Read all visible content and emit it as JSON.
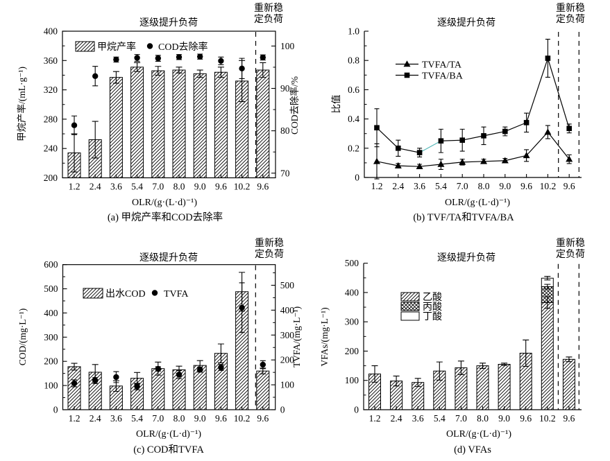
{
  "figure": {
    "background": "#ffffff",
    "ink": "#000000",
    "shared": {
      "stage_label": "逐级提升负荷",
      "restab_lines": [
        "重新稳",
        "定负荷"
      ],
      "xlabel": "OLR/(g·(L·d)⁻¹)",
      "categories": [
        "1.2",
        "2.4",
        "3.6",
        "5.4",
        "7.0",
        "8.0",
        "9.0",
        "9.6",
        "10.2",
        "9.6"
      ]
    }
  },
  "chart_data": [
    {
      "id": "a",
      "type": "bar",
      "caption": "(a) 甲烷产率和COD去除率",
      "stage_label": "逐级提升负荷",
      "restab_label": "重新稳定负荷",
      "xlabel": "OLR/(g·(L·d)⁻¹)",
      "categories": [
        "1.2",
        "2.4",
        "3.6",
        "5.4",
        "7.0",
        "8.0",
        "9.0",
        "9.6",
        "10.2",
        "9.6"
      ],
      "left_axis": {
        "label": "甲烷产率/(mL·g⁻¹)",
        "min": 200,
        "max": 400,
        "ticks": [
          200,
          240,
          280,
          320,
          360,
          400
        ],
        "tick_labels": [
          "200",
          "240",
          "280",
          "320",
          "360",
          "400"
        ],
        "minor_step": 20
      },
      "right_axis": {
        "label": "COD去除率/%",
        "min": 68.9,
        "max": 103.5,
        "ticks": [
          70,
          80,
          90,
          100
        ],
        "tick_labels": [
          "70",
          "80",
          "90",
          "100"
        ],
        "minor_step": 5
      },
      "series": [
        {
          "name": "甲烷产率",
          "kind": "bar",
          "axis": "left",
          "values": [
            234,
            252,
            337,
            351,
            346,
            347,
            342,
            344,
            332,
            347
          ],
          "errors": [
            26,
            25,
            8,
            6,
            6,
            4,
            5,
            7,
            28,
            10
          ]
        },
        {
          "name": "COD去除率",
          "kind": "scatter",
          "axis": "right",
          "values": [
            81.3,
            92.9,
            96.8,
            97.2,
            97.1,
            97.4,
            97.5,
            96.5,
            94.7,
            97.3
          ],
          "errors": [
            2.2,
            2.3,
            0.6,
            0.8,
            0.7,
            0.6,
            0.6,
            0.9,
            2.4,
            0.6
          ]
        }
      ],
      "legend": [
        {
          "label": "甲烷产率",
          "swatch": "hatch-box"
        },
        {
          "label": "COD去除率",
          "swatch": "dot"
        }
      ]
    },
    {
      "id": "b",
      "type": "line",
      "caption": "(b) TVF/TA和TVFA/BA",
      "stage_label": "逐级提升负荷",
      "restab_label": "重新稳定负荷",
      "xlabel": "OLR/(g·(L·d)⁻¹)",
      "categories": [
        "1.2",
        "2.4",
        "3.6",
        "5.4",
        "7.0",
        "8.0",
        "9.0",
        "9.6",
        "10.2",
        "9.6"
      ],
      "left_axis": {
        "label": "比值",
        "min": 0,
        "max": 1,
        "ticks": [
          0,
          0.2,
          0.4,
          0.6,
          0.8,
          1
        ],
        "tick_labels": [
          "0",
          "0.2",
          "0.4",
          "0.6",
          "0.8",
          "1.0"
        ],
        "minor_step": 0.1
      },
      "series": [
        {
          "name": "TVFA/TA",
          "kind": "line",
          "marker": "triangle",
          "axis": "left",
          "values": [
            0.11,
            0.08,
            0.075,
            0.09,
            0.105,
            0.11,
            0.115,
            0.15,
            0.31,
            0.125
          ],
          "errors": [
            0.12,
            0.015,
            0.015,
            0.035,
            0.02,
            0.015,
            0.015,
            0.04,
            0.045,
            0.03
          ]
        },
        {
          "name": "TVFA/BA",
          "kind": "line",
          "marker": "square",
          "axis": "left",
          "values": [
            0.34,
            0.2,
            0.17,
            0.25,
            0.255,
            0.285,
            0.315,
            0.375,
            0.815,
            0.335
          ],
          "errors": [
            0.13,
            0.055,
            0.03,
            0.08,
            0.075,
            0.06,
            0.03,
            0.065,
            0.13,
            0.03
          ],
          "highlight_segment": {
            "from": 2,
            "to": 3,
            "color": "#55b8b8"
          }
        }
      ],
      "legend": [
        {
          "label": "TVFA/TA",
          "swatch": "line-triangle"
        },
        {
          "label": "TVFA/BA",
          "swatch": "line-square"
        }
      ]
    },
    {
      "id": "c",
      "type": "bar",
      "caption": "(c) COD和TVFA",
      "stage_label": "逐级提升负荷",
      "restab_label": "重新稳定负荷",
      "xlabel": "OLR/(g·(L·d)⁻¹)",
      "categories": [
        "1.2",
        "2.4",
        "3.6",
        "5.4",
        "7.0",
        "8.0",
        "9.0",
        "9.6",
        "10.2",
        "9.6"
      ],
      "left_axis": {
        "label": "COD/(mg·L⁻¹)",
        "min": 0,
        "max": 600,
        "ticks": [
          0,
          100,
          200,
          300,
          400,
          500,
          600
        ],
        "tick_labels": [
          "0",
          "100",
          "200",
          "300",
          "400",
          "500",
          "600"
        ],
        "minor_step": 50
      },
      "right_axis": {
        "label": "TVFA/(mg·L⁻¹)",
        "min": 0,
        "max": 583,
        "ticks": [
          0,
          100,
          200,
          300,
          400,
          500
        ],
        "tick_labels": [
          "0",
          "100",
          "200",
          "300",
          "400",
          "500"
        ],
        "minor_step": 50
      },
      "series": [
        {
          "name": "出水COD",
          "kind": "bar",
          "axis": "left",
          "values": [
            178,
            155,
            98,
            130,
            170,
            165,
            183,
            233,
            488,
            160
          ],
          "errors": [
            14,
            32,
            22,
            24,
            27,
            15,
            20,
            39,
            80,
            12
          ]
        },
        {
          "name": "TVFA",
          "kind": "scatter",
          "axis": "right",
          "values": [
            106,
            117,
            131,
            93,
            164,
            141,
            161,
            170,
            410,
            181
          ],
          "errors": [
            14,
            12,
            22,
            13,
            9,
            16,
            10,
            12,
            100,
            16
          ]
        }
      ],
      "legend": [
        {
          "label": "出水COD",
          "swatch": "hatch-box"
        },
        {
          "label": "TVFA",
          "swatch": "dot"
        }
      ]
    },
    {
      "id": "d",
      "type": "stacked-bar",
      "caption": "(d) VFAs",
      "stage_label": "逐级提升负荷",
      "restab_label": "重新稳定负荷",
      "xlabel": "OLR/(g·(L·d)⁻¹)",
      "categories": [
        "1.2",
        "2.4",
        "3.6",
        "5.4",
        "7.0",
        "8.0",
        "9.0",
        "9.6",
        "10.2",
        "9.6"
      ],
      "left_axis": {
        "label": "VFAs/(mg·L⁻¹)",
        "min": 0,
        "max": 500,
        "ticks": [
          0,
          100,
          200,
          300,
          400,
          500
        ],
        "tick_labels": [
          "0",
          "100",
          "200",
          "300",
          "400",
          "500"
        ],
        "minor_step": 50
      },
      "series": [
        {
          "name": "乙酸",
          "kind": "stack",
          "pattern": "hatch",
          "values": [
            122,
            98,
            93,
            132,
            143,
            150,
            155,
            193,
            366,
            172
          ],
          "errors": [
            28,
            17,
            14,
            31,
            23,
            9,
            4,
            45,
            20,
            8
          ]
        },
        {
          "name": "丙酸",
          "kind": "stack",
          "pattern": "cross",
          "values": [
            0,
            0,
            0,
            0,
            0,
            0,
            0,
            0,
            54,
            0
          ],
          "errors": [
            0,
            0,
            0,
            0,
            0,
            0,
            0,
            0,
            8,
            0
          ]
        },
        {
          "name": "丁酸",
          "kind": "stack",
          "pattern": "none",
          "values": [
            0,
            0,
            0,
            0,
            0,
            0,
            0,
            0,
            29,
            0
          ],
          "errors": [
            0,
            0,
            0,
            0,
            0,
            0,
            0,
            0,
            6,
            0
          ]
        }
      ],
      "legend": [
        {
          "label": "乙酸",
          "swatch": "hatch-box"
        },
        {
          "label": "丙酸",
          "swatch": "cross-box"
        },
        {
          "label": "丁酸",
          "swatch": "empty-box"
        }
      ]
    }
  ]
}
